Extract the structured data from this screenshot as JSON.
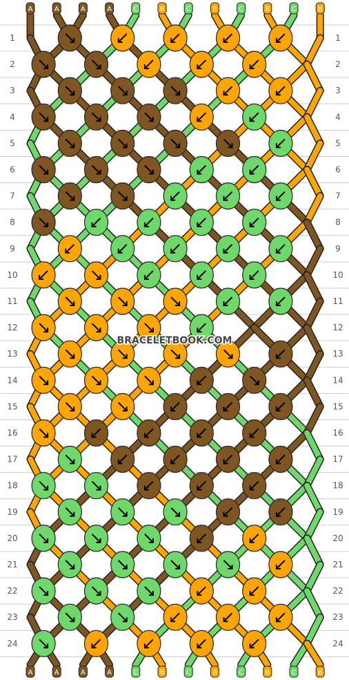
{
  "watermark": "BRACELETBOOK.COM",
  "colors": {
    "A": "#7f5622",
    "B": "#ffa500",
    "C": "#6fd86b",
    "outline": "#222222",
    "gridline": "#cccccc",
    "arrow": "#000000"
  },
  "strands": {
    "top": [
      "A",
      "A",
      "A",
      "A",
      "C",
      "B",
      "C",
      "B",
      "C",
      "B",
      "C",
      "B"
    ],
    "bottom": [
      "A",
      "A",
      "A",
      "A",
      "C",
      "B",
      "C",
      "B",
      "C",
      "B",
      "C",
      "B"
    ]
  },
  "row_numbers": [
    "1",
    "2",
    "3",
    "4",
    "5",
    "6",
    "7",
    "8",
    "9",
    "10",
    "11",
    "12",
    "13",
    "14",
    "15",
    "16",
    "17",
    "18",
    "19",
    "20",
    "21",
    "22",
    "23",
    "24"
  ],
  "knots": [
    "A:f,B:b,B:b,B:b,B:b",
    "A:f,A:f,B:b,B:b,B:b",
    "A:f,A:f,A:f,B:b,B:b,-",
    "A:f,A:f,A:f,B:b,C:b",
    "A:f,A:f,A:f,A:f,C:b,-",
    "A:f,A:f,A:f,C:b,C:b",
    "A:f,A:f,C:b,C:b,C:b,C:b",
    "A:f,C:b,C:b,C:b,C:b",
    "B:b,C:b,C:b,C:b,C:b,C:b",
    "B:b,B:f,C:b,C:b,C:b",
    "B:f,B:f,B:f,C:b,C:b,-",
    "B:f,B:f,B:f,C:b,-",
    "B:f,B:f,B:f,B:f,A:b,-",
    "B:f,B:f,B:f,A:b,A:f",
    "B:f,B:f,A:b,A:b,A:b,A:b",
    "B:f,A:b,A:b,A:b,A:b",
    "C:f,A:b,A:b,A:b,A:b,A:b",
    "C:f,C:f,A:b,A:b,A:b",
    "C:f,C:f,C:f,A:b,A:b,-",
    "C:f,C:f,C:f,A:b,B:b",
    "C:f,C:f,C:f,C:f,B:b,-",
    "C:f,C:f,C:f,B:b,B:b",
    "C:f,C:f,B:b,B:b,B:b,B:b",
    "C:f,B:b,B:b,B:b,B:b"
  ]
}
